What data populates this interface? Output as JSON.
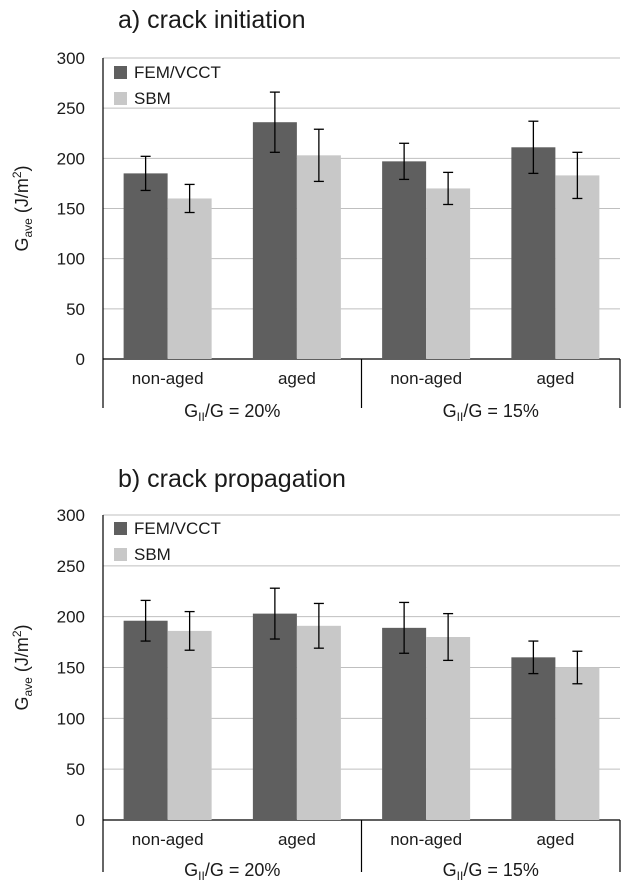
{
  "chart_data": [
    {
      "type": "bar",
      "title": "a) crack initiation",
      "ylabel": "Gave (J/m2)",
      "ylabel_parts": {
        "main": "G",
        "sub": "ave",
        "rest": " (J/m",
        "sup": "2",
        "end": ")"
      },
      "ylim": [
        0,
        300
      ],
      "yticks": [
        0,
        50,
        100,
        150,
        200,
        250,
        300
      ],
      "grid": true,
      "legend_position": "top-left",
      "categories": [
        "non-aged",
        "aged",
        "non-aged",
        "aged"
      ],
      "groups": [
        {
          "label": "GII/G = 20%",
          "parts": {
            "main": "G",
            "sub": "II",
            "rest": "/G = 20%"
          },
          "span": [
            0,
            1
          ]
        },
        {
          "label": "GII/G = 15%",
          "parts": {
            "main": "G",
            "sub": "II",
            "rest": "/G = 15%"
          },
          "span": [
            2,
            3
          ]
        }
      ],
      "series": [
        {
          "name": "FEM/VCCT",
          "color": "#5f5f5f",
          "values": [
            185,
            236,
            197,
            211
          ],
          "error": [
            17,
            30,
            18,
            26
          ]
        },
        {
          "name": "SBM",
          "color": "#c8c8c8",
          "values": [
            160,
            203,
            170,
            183
          ],
          "error": [
            14,
            26,
            16,
            23
          ]
        }
      ]
    },
    {
      "type": "bar",
      "title": "b) crack propagation",
      "ylabel": "Gave (J/m2)",
      "ylabel_parts": {
        "main": "G",
        "sub": "ave",
        "rest": " (J/m",
        "sup": "2",
        "end": ")"
      },
      "ylim": [
        0,
        300
      ],
      "yticks": [
        0,
        50,
        100,
        150,
        200,
        250,
        300
      ],
      "grid": true,
      "legend_position": "top-left",
      "categories": [
        "non-aged",
        "aged",
        "non-aged",
        "aged"
      ],
      "groups": [
        {
          "label": "GII/G = 20%",
          "parts": {
            "main": "G",
            "sub": "II",
            "rest": "/G = 20%"
          },
          "span": [
            0,
            1
          ]
        },
        {
          "label": "GII/G = 15%",
          "parts": {
            "main": "G",
            "sub": "II",
            "rest": "/G = 15%"
          },
          "span": [
            2,
            3
          ]
        }
      ],
      "series": [
        {
          "name": "FEM/VCCT",
          "color": "#5f5f5f",
          "values": [
            196,
            203,
            189,
            160
          ],
          "error": [
            20,
            25,
            25,
            16
          ]
        },
        {
          "name": "SBM",
          "color": "#c8c8c8",
          "values": [
            186,
            191,
            180,
            150
          ],
          "error": [
            19,
            22,
            23,
            16
          ]
        }
      ]
    }
  ]
}
